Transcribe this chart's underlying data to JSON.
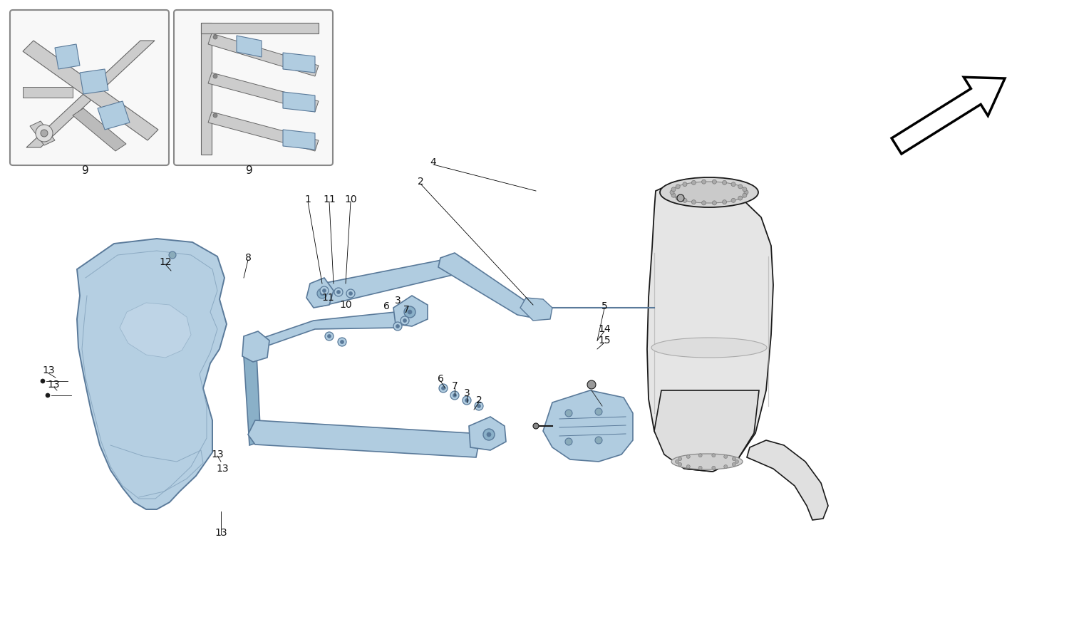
{
  "bg_color": "#ffffff",
  "line_color": "#1a1a1a",
  "part_fill": "#b0cce0",
  "part_edge": "#5a7a9a",
  "part_fill_light": "#d0e4f0",
  "part_fill_dark": "#8ab0c8",
  "tank_fill": "#e8e8e8",
  "tank_edge": "#333333",
  "inset_bg": "#f8f8f8",
  "inset_border": "#888888",
  "label_color": "#111111",
  "label_fs": 10,
  "gray_fill": "#cccccc",
  "gray_edge": "#666666"
}
